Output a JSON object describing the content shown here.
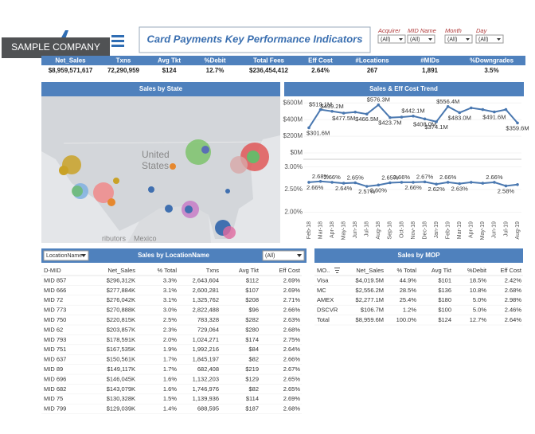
{
  "header": {
    "badge": "SAMPLE COMPANY",
    "title": "Card Payments Key Performance Indicators",
    "filters": [
      {
        "label": "Acquirer",
        "value": "(All)"
      },
      {
        "label": "MID Name",
        "value": "(All)"
      },
      {
        "label": "Month",
        "value": "(All)"
      },
      {
        "label": "Day",
        "value": "(All)"
      }
    ]
  },
  "kpis": {
    "labels": [
      "Net_Sales",
      "Txns",
      "Avg Tkt",
      "%Debit",
      "Total Fees",
      "Eff Cost",
      "#Locations",
      "#MIDs",
      "%Downgrades"
    ],
    "values": [
      "$8,959,571,617",
      "72,290,959",
      "$124",
      "12.7%",
      "$236,454,412",
      "2.64%",
      "267",
      "1,891",
      "3.5%"
    ]
  },
  "map": {
    "title": "Sales by State",
    "labels": [
      "United",
      "States",
      "Mexico",
      "ributors"
    ]
  },
  "chart_data": [
    {
      "type": "line",
      "title": "Sales & Eff Cost Trend",
      "categories": [
        "Feb-18",
        "Mar-18",
        "Apr-18",
        "May-18",
        "Jun-18",
        "Jul-18",
        "Aug-18",
        "Sep-18",
        "Oct-18",
        "Nov-18",
        "Dec-18",
        "Jan-19",
        "Feb-19",
        "Mar-19",
        "Apr-19",
        "May-19",
        "Jun-19",
        "Jul-19",
        "Aug-19"
      ],
      "values": [
        301.6,
        519.1,
        499.2,
        477.5,
        490,
        466.5,
        576.3,
        423.7,
        430,
        442.1,
        408.0,
        374.1,
        556.4,
        483.0,
        540,
        520,
        491.6,
        520,
        359.6
      ],
      "value_labels": [
        "$301.6M",
        "$519.1M",
        "$499.2M",
        "$477.5M",
        null,
        "$466.5M",
        "$576.3M",
        "$423.7M",
        null,
        "$442.1M",
        "$408.0M",
        "$374.1M",
        "$556.4M",
        "$483.0M",
        null,
        null,
        "$491.6M",
        null,
        "$359.6M"
      ],
      "color": "#4a78b0",
      "ylim": [
        0,
        650
      ],
      "yticks": [
        {
          "value": 0,
          "label": "$0M"
        },
        {
          "value": 200,
          "label": "$200M"
        },
        {
          "value": 400,
          "label": "$400M"
        },
        {
          "value": 600,
          "label": "$600M"
        }
      ]
    },
    {
      "type": "line",
      "values": [
        2.66,
        2.68,
        2.66,
        2.64,
        2.65,
        2.57,
        2.6,
        2.65,
        2.66,
        2.66,
        2.67,
        2.62,
        2.66,
        2.63,
        2.66,
        2.64,
        2.66,
        2.58,
        2.61
      ],
      "value_labels": [
        "2.66%",
        "2.68%",
        "2.66%",
        "2.64%",
        "2.65%",
        "2.57%",
        "2.60%",
        "2.65%",
        "2.66%",
        "2.66%",
        "2.67%",
        "2.62%",
        "2.66%",
        "2.63%",
        null,
        null,
        "2.66%",
        "2.58%",
        null
      ],
      "color": "#4a78b0",
      "ylim": [
        1.9,
        3.1
      ],
      "yticks": [
        {
          "value": 2,
          "label": "2.00%"
        },
        {
          "value": 2.5,
          "label": "2.50%"
        },
        {
          "value": 3,
          "label": "3.00%"
        }
      ]
    }
  ],
  "location_table": {
    "title": "Sales by LocationName",
    "selector": "LocationName",
    "filter": "(All)",
    "columns": [
      "D-MID",
      "Net_Sales",
      "% Total",
      "Txns",
      "Avg Tkt",
      "Eff Cost"
    ],
    "rows": [
      [
        "MID 857",
        "$296,312K",
        "3.3%",
        "2,643,604",
        "$112",
        "2.69%"
      ],
      [
        "MID 666",
        "$277,884K",
        "3.1%",
        "2,600,281",
        "$107",
        "2.69%"
      ],
      [
        "MID 72",
        "$276,042K",
        "3.1%",
        "1,325,762",
        "$208",
        "2.71%"
      ],
      [
        "MID 773",
        "$270,888K",
        "3.0%",
        "2,822,488",
        "$96",
        "2.66%"
      ],
      [
        "MID 750",
        "$220,815K",
        "2.5%",
        "783,328",
        "$282",
        "2.63%"
      ],
      [
        "MID 62",
        "$203,857K",
        "2.3%",
        "729,064",
        "$280",
        "2.68%"
      ],
      [
        "MID 793",
        "$178,591K",
        "2.0%",
        "1,024,271",
        "$174",
        "2.75%"
      ],
      [
        "MID 751",
        "$167,535K",
        "1.9%",
        "1,992,216",
        "$84",
        "2.64%"
      ],
      [
        "MID 637",
        "$150,561K",
        "1.7%",
        "1,845,197",
        "$82",
        "2.66%"
      ],
      [
        "MID 89",
        "$149,117K",
        "1.7%",
        "682,408",
        "$219",
        "2.67%"
      ],
      [
        "MID 696",
        "$146,045K",
        "1.6%",
        "1,132,203",
        "$129",
        "2.65%"
      ],
      [
        "MID 682",
        "$143,079K",
        "1.6%",
        "1,746,976",
        "$82",
        "2.65%"
      ],
      [
        "MID 75",
        "$130,328K",
        "1.5%",
        "1,139,936",
        "$114",
        "2.69%"
      ],
      [
        "MID 799",
        "$129,039K",
        "1.4%",
        "688,595",
        "$187",
        "2.68%"
      ]
    ]
  },
  "mop_table": {
    "title": "Sales by MOP",
    "columns": [
      "MO..",
      "Net_Sales",
      "% Total",
      "Avg Tkt",
      "%Debit",
      "Eff Cost"
    ],
    "rows": [
      [
        "Visa",
        "$4,019.5M",
        "44.9%",
        "$101",
        "18.5%",
        "2.42%"
      ],
      [
        "MC",
        "$2,556.2M",
        "28.5%",
        "$136",
        "10.8%",
        "2.68%"
      ],
      [
        "AMEX",
        "$2,277.1M",
        "25.4%",
        "$180",
        "5.0%",
        "2.98%"
      ],
      [
        "DSCVR",
        "$106.7M",
        "1.2%",
        "$100",
        "5.0%",
        "2.46%"
      ],
      [
        "Total",
        "$8,959.6M",
        "100.0%",
        "$124",
        "12.7%",
        "2.64%"
      ]
    ]
  }
}
